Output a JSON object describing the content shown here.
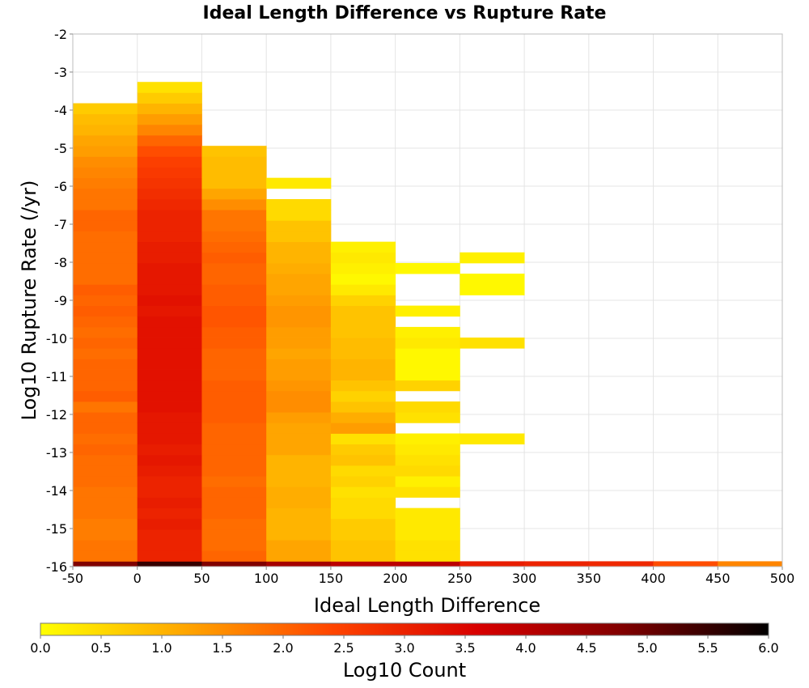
{
  "chart_data": {
    "type": "heatmap",
    "title": "Ideal Length Difference vs Rupture Rate",
    "xlabel": "Ideal Length Difference",
    "ylabel": "Log10 Rupture Rate (/yr)",
    "colorbar_label": "Log10 Count",
    "xlim": [
      -50,
      500
    ],
    "ylim": [
      -16,
      -2
    ],
    "x_ticks": [
      "-50",
      "0",
      "50",
      "100",
      "150",
      "200",
      "250",
      "300",
      "350",
      "400",
      "450",
      "500"
    ],
    "y_ticks": [
      "-2",
      "-3",
      "-4",
      "-5",
      "-6",
      "-7",
      "-8",
      "-9",
      "-10",
      "-11",
      "-12",
      "-13",
      "-14",
      "-15",
      "-16"
    ],
    "color_range": [
      0.0,
      6.0
    ],
    "colorbar_ticks": [
      "0.0",
      "0.5",
      "1.0",
      "1.5",
      "2.0",
      "2.5",
      "3.0",
      "3.5",
      "4.0",
      "4.5",
      "5.0",
      "5.5",
      "6.0"
    ],
    "colormap": [
      "#ffff00",
      "#ffa500",
      "#ff4500",
      "#d80000",
      "#800000",
      "#000000"
    ],
    "x_bin_width": 50,
    "y_bin_height": 0.28,
    "columns": [
      {
        "x0": -50,
        "y_start": -16,
        "values": [
          4.8,
          1.8,
          1.8,
          1.7,
          1.7,
          1.8,
          1.8,
          1.8,
          1.9,
          1.9,
          1.9,
          2.0,
          1.9,
          2.0,
          2.0,
          1.8,
          2.1,
          2.0,
          2.0,
          2.0,
          1.9,
          2.0,
          1.9,
          2.0,
          2.1,
          2.0,
          2.1,
          1.9,
          1.9,
          1.9,
          1.9,
          1.9,
          2.0,
          2.0,
          1.8,
          1.8,
          1.7,
          1.6,
          1.5,
          1.3,
          1.2,
          1.0,
          0.9,
          0.7
        ]
      },
      {
        "x0": 0,
        "y_start": -16,
        "values": [
          5.5,
          3.0,
          3.0,
          3.0,
          3.1,
          3.0,
          3.1,
          3.0,
          3.0,
          3.1,
          3.2,
          3.1,
          3.2,
          3.2,
          3.2,
          3.3,
          3.3,
          3.3,
          3.3,
          3.3,
          3.3,
          3.3,
          3.3,
          3.3,
          3.2,
          3.3,
          3.2,
          3.2,
          3.2,
          3.1,
          3.1,
          3.0,
          3.0,
          3.0,
          2.9,
          2.8,
          2.7,
          2.6,
          2.5,
          2.3,
          2.0,
          1.6,
          1.3,
          1.0,
          0.7,
          0.4
        ]
      },
      {
        "x0": 50,
        "y_start": -16,
        "values": [
          4.8,
          2.0,
          1.9,
          1.9,
          1.9,
          2.0,
          2.0,
          2.0,
          1.9,
          2.0,
          2.0,
          2.0,
          2.0,
          2.0,
          2.1,
          2.1,
          2.1,
          2.1,
          2.0,
          2.0,
          2.0,
          2.1,
          2.1,
          2.2,
          2.2,
          2.1,
          2.1,
          2.0,
          2.0,
          2.1,
          2.0,
          1.9,
          1.8,
          1.8,
          1.5,
          1.2,
          0.9,
          0.9,
          0.9,
          0.8
        ]
      },
      {
        "x0": 100,
        "y_start": -16,
        "values": [
          4.3,
          1.2,
          1.2,
          1.0,
          1.0,
          1.0,
          1.1,
          1.1,
          1.0,
          1.0,
          1.0,
          1.2,
          1.2,
          1.2,
          1.3,
          1.5,
          1.5,
          1.4,
          1.3,
          1.3,
          1.2,
          1.3,
          1.3,
          1.4,
          1.4,
          1.3,
          1.2,
          1.2,
          1.1,
          1.0,
          1.0,
          0.8,
          0.8,
          0.5,
          0.5,
          null,
          0.3
        ]
      },
      {
        "x0": 150,
        "y_start": -16,
        "values": [
          4.0,
          0.8,
          0.8,
          0.7,
          0.7,
          0.5,
          0.5,
          0.4,
          0.6,
          0.5,
          0.8,
          0.7,
          0.4,
          1.3,
          1.1,
          0.8,
          0.6,
          0.8,
          1.0,
          1.0,
          0.9,
          0.9,
          0.8,
          0.8,
          0.8,
          0.6,
          0.3,
          0.1,
          0.2,
          0.3,
          0.2
        ]
      },
      {
        "x0": 200,
        "y_start": -16,
        "values": [
          4.0,
          0.4,
          0.4,
          0.3,
          0.3,
          0.3,
          null,
          0.4,
          0.2,
          0.5,
          0.4,
          0.3,
          0.2,
          null,
          0.4,
          0.5,
          null,
          0.6,
          0.1,
          0.1,
          0.1,
          0.3,
          0.2,
          null,
          0.2,
          null,
          null,
          null,
          0.1
        ]
      },
      {
        "x0": 250,
        "y_start": -16,
        "values": [
          3.1,
          null,
          null,
          null,
          null,
          null,
          null,
          null,
          null,
          null,
          null,
          null,
          0.3,
          null,
          null,
          null,
          null,
          null,
          null,
          null,
          null,
          0.4,
          null,
          null,
          null,
          null,
          0.1,
          0.1,
          null,
          0.2
        ]
      },
      {
        "x0": 300,
        "y_start": -16,
        "values": [
          3.0
        ]
      },
      {
        "x0": 350,
        "y_start": -16,
        "values": [
          2.9
        ]
      },
      {
        "x0": 400,
        "y_start": -16,
        "values": [
          2.3
        ]
      },
      {
        "x0": 450,
        "y_start": -16,
        "values": [
          1.6
        ]
      }
    ],
    "grid": true,
    "legend": "colorbar-bottom"
  }
}
